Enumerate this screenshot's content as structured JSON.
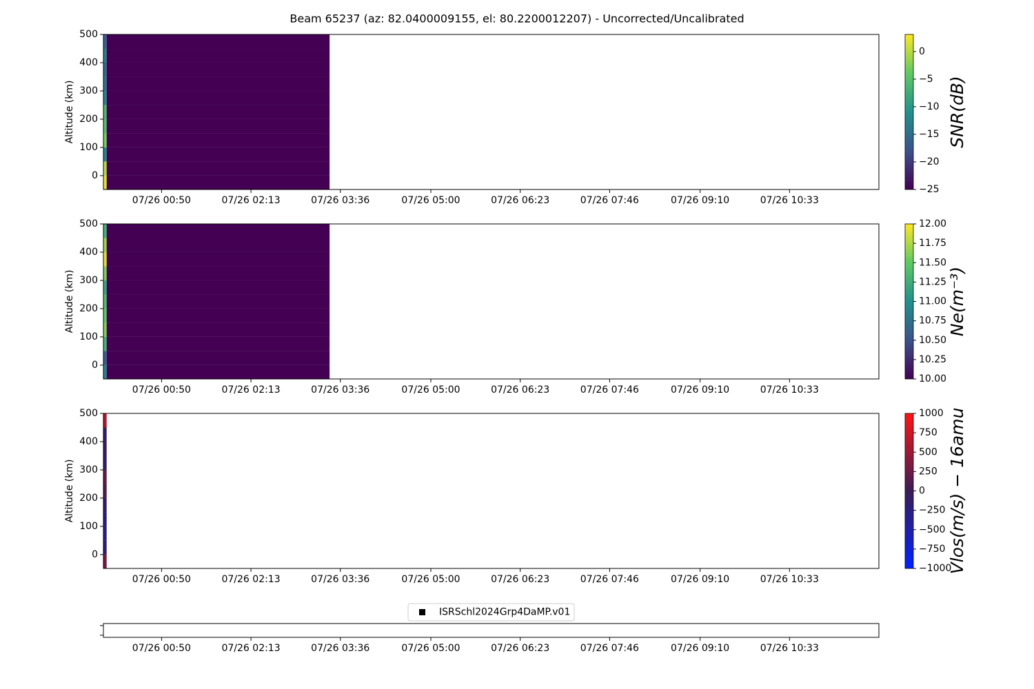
{
  "title": "Beam 65237 (az: 82.0400009155, el: 80.2200012207) - Uncorrected/Uncalibrated",
  "chart_data": [
    {
      "type": "heatmap",
      "ylabel": "Altitude (km)",
      "xlim": [
        -4,
        716
      ],
      "xticks": [
        {
          "value": 50,
          "label": "07/26 00:50"
        },
        {
          "value": 133,
          "label": "07/26 02:13"
        },
        {
          "value": 216,
          "label": "07/26 03:36"
        },
        {
          "value": 300,
          "label": "07/26 05:00"
        },
        {
          "value": 383,
          "label": "07/26 06:23"
        },
        {
          "value": 466,
          "label": "07/26 07:46"
        },
        {
          "value": 550,
          "label": "07/26 09:10"
        },
        {
          "value": 633,
          "label": "07/26 10:33"
        }
      ],
      "ylim": [
        -49,
        500
      ],
      "yticks": [
        0,
        100,
        200,
        300,
        400,
        500
      ],
      "x_edges": [
        -4,
        -1,
        206
      ],
      "y_edges": [
        -49,
        0,
        50,
        100,
        150,
        200,
        250,
        300,
        350,
        400,
        450,
        500
      ],
      "values": [
        [
          2,
          -25
        ],
        [
          0,
          -25
        ],
        [
          -12,
          -25
        ],
        [
          -3,
          -25
        ],
        [
          -5,
          -25
        ],
        [
          -6,
          -25
        ],
        [
          -12,
          -25
        ],
        [
          -14,
          -25
        ],
        [
          -15,
          -25
        ],
        [
          -13,
          -25
        ],
        [
          -16,
          -25
        ]
      ],
      "colormap": "viridis",
      "clim": [
        -25,
        3.1
      ],
      "cticks": [
        {
          "value": -25,
          "label": "−25"
        },
        {
          "value": -20,
          "label": "−20"
        },
        {
          "value": -15,
          "label": "−15"
        },
        {
          "value": -10,
          "label": "−10"
        },
        {
          "value": -5,
          "label": "−5"
        },
        0
      ],
      "colorbar_label": "SNR(dB)"
    },
    {
      "type": "heatmap",
      "ylabel": "Altitude (km)",
      "xlim": [
        -4,
        716
      ],
      "xticks": [
        {
          "value": 50,
          "label": "07/26 00:50"
        },
        {
          "value": 133,
          "label": "07/26 02:13"
        },
        {
          "value": 216,
          "label": "07/26 03:36"
        },
        {
          "value": 300,
          "label": "07/26 05:00"
        },
        {
          "value": 383,
          "label": "07/26 06:23"
        },
        {
          "value": 466,
          "label": "07/26 07:46"
        },
        {
          "value": 550,
          "label": "07/26 09:10"
        },
        {
          "value": 633,
          "label": "07/26 10:33"
        }
      ],
      "ylim": [
        -49,
        500
      ],
      "yticks": [
        0,
        100,
        200,
        300,
        400,
        500
      ],
      "x_edges": [
        -4,
        -1,
        206
      ],
      "y_edges": [
        -49,
        0,
        50,
        100,
        150,
        200,
        250,
        300,
        350,
        400,
        450,
        500
      ],
      "values": [
        [
          10.9,
          10
        ],
        [
          10.6,
          10
        ],
        [
          11.3,
          10
        ],
        [
          11.6,
          10
        ],
        [
          11.5,
          10
        ],
        [
          11.4,
          10
        ],
        [
          11.2,
          10
        ],
        [
          11.6,
          10
        ],
        [
          11.9,
          10
        ],
        [
          11.7,
          10
        ],
        [
          11.3,
          10
        ]
      ],
      "colormap": "viridis",
      "clim": [
        10,
        12
      ],
      "cticks": [
        {
          "value": 10,
          "label": "10.00"
        },
        10.25,
        {
          "value": 10.5,
          "label": "10.50"
        },
        10.75,
        {
          "value": 11,
          "label": "11.00"
        },
        11.25,
        {
          "value": 11.5,
          "label": "11.50"
        },
        11.75,
        {
          "value": 12,
          "label": "12.00"
        }
      ],
      "colorbar_label": "Ne(m⁻³)"
    },
    {
      "type": "heatmap",
      "ylabel": "Altitude (km)",
      "xlim": [
        -4,
        716
      ],
      "xticks": [
        {
          "value": 50,
          "label": "07/26 00:50"
        },
        {
          "value": 133,
          "label": "07/26 02:13"
        },
        {
          "value": 216,
          "label": "07/26 03:36"
        },
        {
          "value": 300,
          "label": "07/26 05:00"
        },
        {
          "value": 383,
          "label": "07/26 06:23"
        },
        {
          "value": 466,
          "label": "07/26 07:46"
        },
        {
          "value": 550,
          "label": "07/26 09:10"
        },
        {
          "value": 633,
          "label": "07/26 10:33"
        }
      ],
      "ylim": [
        -49,
        500
      ],
      "yticks": [
        0,
        100,
        200,
        300,
        400,
        500
      ],
      "x_edges": [
        -4,
        -1
      ],
      "y_edges": [
        -49,
        0,
        50,
        100,
        150,
        200,
        250,
        300,
        350,
        400,
        450,
        500
      ],
      "values": [
        [
          300
        ],
        [
          -200
        ],
        [
          -300
        ],
        [
          -250
        ],
        [
          -150
        ],
        [
          100
        ],
        [
          200
        ],
        [
          -100
        ],
        [
          -50
        ],
        [
          -100
        ],
        [
          600
        ]
      ],
      "colormap": "blue-dark-red",
      "clim": [
        -1000,
        1000
      ],
      "cticks": [
        {
          "value": -1000,
          "label": "−1000"
        },
        {
          "value": -750,
          "label": "−750"
        },
        {
          "value": -500,
          "label": "−500"
        },
        {
          "value": -250,
          "label": "−250"
        },
        0,
        250,
        500,
        750,
        1000
      ],
      "colorbar_label": "Vlos(m/s) − 16amu"
    },
    {
      "type": "legend-strip",
      "xlim": [
        -4,
        716
      ],
      "xticks": [
        {
          "value": 50,
          "label": "07/26 00:50"
        },
        {
          "value": 133,
          "label": "07/26 02:13"
        },
        {
          "value": 216,
          "label": "07/26 03:36"
        },
        {
          "value": 300,
          "label": "07/26 05:00"
        },
        {
          "value": 383,
          "label": "07/26 06:23"
        },
        {
          "value": 466,
          "label": "07/26 07:46"
        },
        {
          "value": 550,
          "label": "07/26 09:10"
        },
        {
          "value": 633,
          "label": "07/26 10:33"
        }
      ],
      "series": [
        {
          "name": "ISRSchl2024Grp4DaMP.v01",
          "color": "#000000",
          "marker": "square",
          "values": []
        }
      ]
    }
  ]
}
